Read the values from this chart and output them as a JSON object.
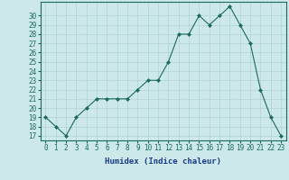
{
  "x": [
    0,
    1,
    2,
    3,
    4,
    5,
    6,
    7,
    8,
    9,
    10,
    11,
    12,
    13,
    14,
    15,
    16,
    17,
    18,
    19,
    20,
    21,
    22,
    23
  ],
  "y": [
    19,
    18,
    17,
    19,
    20,
    21,
    21,
    21,
    21,
    22,
    23,
    23,
    25,
    28,
    28,
    30,
    29,
    30,
    31,
    29,
    27,
    22,
    19,
    17
  ],
  "line_color": "#1a6b5a",
  "marker_color": "#1a6b5a",
  "bg_color": "#cce8e8",
  "grid_color": "#aacece",
  "xlabel": "Humidex (Indice chaleur)",
  "ylabel": "",
  "ylim": [
    16.5,
    31.5
  ],
  "xlim": [
    -0.5,
    23.5
  ],
  "yticks": [
    17,
    18,
    19,
    20,
    21,
    22,
    23,
    24,
    25,
    26,
    27,
    28,
    29,
    30
  ],
  "xticks": [
    0,
    1,
    2,
    3,
    4,
    5,
    6,
    7,
    8,
    9,
    10,
    11,
    12,
    13,
    14,
    15,
    16,
    17,
    18,
    19,
    20,
    21,
    22,
    23
  ],
  "label_fontsize": 6.5,
  "tick_fontsize": 5.5,
  "tick_color": "#1a6b5a",
  "xlabel_color": "#1a3a8a",
  "spine_color": "#1a6b5a"
}
